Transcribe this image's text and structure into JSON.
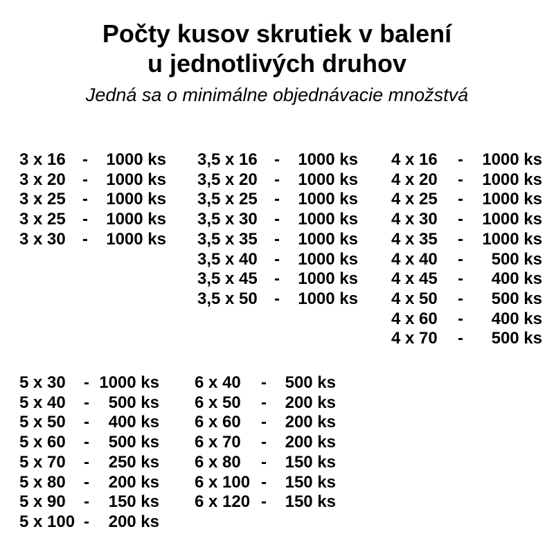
{
  "page": {
    "title_line1": "Počty kusov skrutiek v balení",
    "title_line2": "u jednotlivých druhov",
    "subtitle": "Jedná sa o minimálne objednávacie množstvá"
  },
  "table": {
    "separator": "-",
    "unit": "ks",
    "groups": [
      {
        "columns": [
          {
            "rows": [
              {
                "size": "3 x 16",
                "qty": "1000"
              },
              {
                "size": "3 x 20",
                "qty": "1000"
              },
              {
                "size": "3 x 25",
                "qty": "1000"
              },
              {
                "size": "3 x 25",
                "qty": "1000"
              },
              {
                "size": "3 x 30",
                "qty": "1000"
              }
            ]
          },
          {
            "rows": [
              {
                "size": "3,5 x 16",
                "qty": "1000"
              },
              {
                "size": "3,5 x 20",
                "qty": "1000"
              },
              {
                "size": "3,5 x 25",
                "qty": "1000"
              },
              {
                "size": "3,5 x 30",
                "qty": "1000"
              },
              {
                "size": "3,5 x 35",
                "qty": "1000"
              },
              {
                "size": "3,5 x 40",
                "qty": "1000"
              },
              {
                "size": "3,5 x 45",
                "qty": "1000"
              },
              {
                "size": "3,5 x 50",
                "qty": "1000"
              }
            ]
          },
          {
            "rows": [
              {
                "size": "4 x 16",
                "qty": "1000"
              },
              {
                "size": "4 x 20",
                "qty": "1000"
              },
              {
                "size": "4 x 25",
                "qty": "1000"
              },
              {
                "size": "4 x 30",
                "qty": "1000"
              },
              {
                "size": "4 x 35",
                "qty": "1000"
              },
              {
                "size": "4 x 40",
                "qty": "500"
              },
              {
                "size": "4 x 45",
                "qty": "400"
              },
              {
                "size": "4 x 50",
                "qty": "500"
              },
              {
                "size": "4 x 60",
                "qty": "400"
              },
              {
                "size": "4 x 70",
                "qty": "500"
              }
            ]
          }
        ]
      },
      {
        "columns": [
          {
            "rows": [
              {
                "size": "5 x 30",
                "qty": "1000"
              },
              {
                "size": "5 x 40",
                "qty": "500"
              },
              {
                "size": "5 x 50",
                "qty": "400"
              },
              {
                "size": "5 x 60",
                "qty": "500"
              },
              {
                "size": "5 x 70",
                "qty": "250"
              },
              {
                "size": "5 x 80",
                "qty": "200"
              },
              {
                "size": "5 x 90",
                "qty": "150"
              },
              {
                "size": "5 x 100",
                "qty": "200"
              }
            ]
          },
          {
            "rows": [
              {
                "size": "6 x 40",
                "qty": "500"
              },
              {
                "size": "6 x 50",
                "qty": "200"
              },
              {
                "size": "6 x 60",
                "qty": "200"
              },
              {
                "size": "6 x 70",
                "qty": "200"
              },
              {
                "size": "6 x 80",
                "qty": "150"
              },
              {
                "size": "6 x 100",
                "qty": "150"
              },
              {
                "size": "6 x 120",
                "qty": "150"
              }
            ]
          }
        ]
      }
    ]
  }
}
